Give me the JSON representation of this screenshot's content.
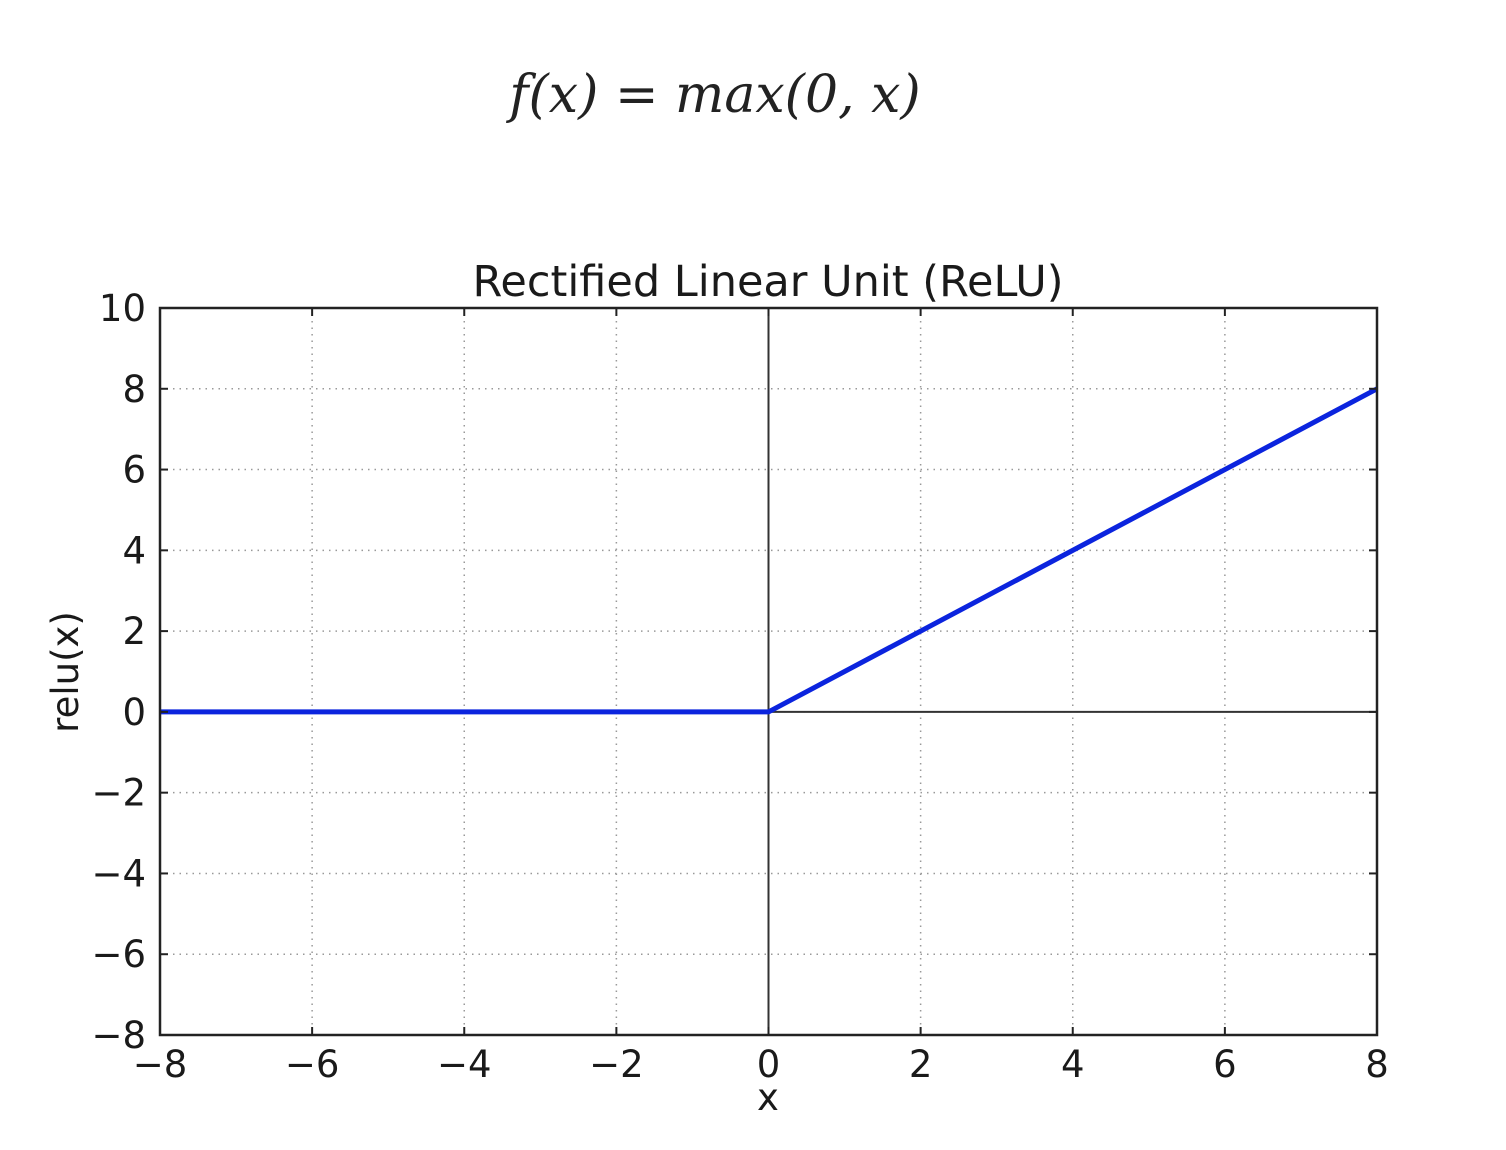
{
  "figure": {
    "formula": "f(x) = max(0, x)",
    "background": "#ffffff"
  },
  "chart_data": {
    "type": "line",
    "title": "Rectified Linear Unit (ReLU)",
    "xlabel": "x",
    "ylabel": "relu(x)",
    "xlim": [
      -8,
      8
    ],
    "ylim": [
      -8,
      10
    ],
    "xticks": [
      -8,
      -6,
      -4,
      -2,
      0,
      2,
      4,
      6,
      8
    ],
    "yticks": [
      -8,
      -6,
      -4,
      -2,
      0,
      2,
      4,
      6,
      8,
      10
    ],
    "grid": {
      "visible": true,
      "style": "dotted",
      "color": "#999999"
    },
    "zero_lines": {
      "x": 0,
      "y": 0,
      "color": "#333333"
    },
    "legend": "none",
    "series": [
      {
        "name": "relu",
        "color": "#0b24de",
        "line_width": 5,
        "x": [
          -8,
          0,
          8
        ],
        "y": [
          0,
          0,
          8
        ]
      }
    ]
  }
}
